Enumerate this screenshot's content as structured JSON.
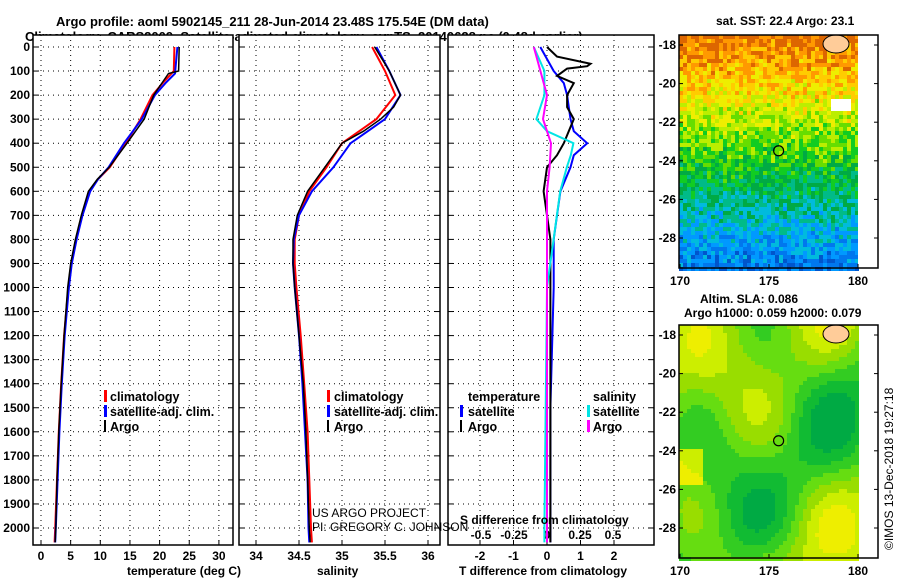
{
  "title_line1": "Argo profile: aoml 5902145_211 28-Jun-2014 23.48S 175.54E (DM data)",
  "title_line2": "Climatology: CARS2009. Satellite-adjusted climatology: synTS_20140628.nc (0.48d earlier)",
  "credit_line1": "US ARGO PROJECT",
  "credit_line2": "PI: GREGORY C. JOHNSON",
  "copyright": "©IMOS 13-Dec-2018 19:27:18",
  "colors": {
    "climatology": "#ff0000",
    "satellite": "#0000ff",
    "argo": "#000000",
    "sal_satellite": "#00e5e5",
    "sal_argo": "#ff00ff",
    "land": "#ffcc99"
  },
  "legend_profile": [
    "climatology",
    "satellite-adj. clim.",
    "Argo"
  ],
  "legend_diff": {
    "temp_title": "temperature",
    "sal_title": "salinity",
    "satellite": "satellite",
    "argo": "Argo"
  },
  "chart_data": [
    {
      "type": "line",
      "xlabel": "temperature (deg C)",
      "ylabel": "depth",
      "xlim": [
        -1.3,
        32
      ],
      "ylim": [
        2070,
        -50
      ],
      "xticks": [
        0,
        5,
        10,
        15,
        20,
        25,
        30
      ],
      "yticks": [
        0,
        100,
        200,
        300,
        400,
        500,
        600,
        700,
        800,
        900,
        1000,
        1100,
        1200,
        1300,
        1400,
        1500,
        1600,
        1700,
        1800,
        1900,
        2000
      ],
      "series": [
        {
          "name": "climatology",
          "depth": [
            0,
            100,
            150,
            200,
            300,
            400,
            500,
            550,
            600,
            700,
            800,
            900,
            1000,
            1200,
            1400,
            1600,
            1800,
            2000,
            2060
          ],
          "values": [
            22.5,
            22.4,
            20.5,
            18.8,
            16.8,
            14.3,
            11.6,
            9.6,
            8.2,
            6.9,
            5.9,
            5.1,
            4.6,
            3.9,
            3.4,
            3.0,
            2.7,
            2.4,
            2.3
          ]
        },
        {
          "name": "satellite-adj. clim.",
          "depth": [
            0,
            110,
            150,
            200,
            300,
            400,
            500,
            550,
            600,
            700,
            800,
            900,
            1000,
            1200,
            1400,
            1600,
            1800,
            2000,
            2060
          ],
          "values": [
            23.0,
            22.6,
            21.0,
            19.2,
            17.0,
            14.0,
            11.4,
            9.6,
            8.3,
            7.0,
            6.0,
            5.2,
            4.7,
            4.0,
            3.5,
            3.1,
            2.8,
            2.5,
            2.4
          ]
        },
        {
          "name": "Argo",
          "depth": [
            0,
            100,
            110,
            200,
            300,
            400,
            500,
            550,
            600,
            700,
            800,
            900,
            1000,
            1200,
            1400,
            1600,
            1800,
            2000,
            2060
          ],
          "values": [
            23.3,
            23.2,
            21.5,
            19.0,
            17.4,
            14.5,
            11.5,
            9.5,
            8.0,
            6.8,
            5.8,
            5.0,
            4.5,
            3.9,
            3.4,
            3.0,
            2.7,
            2.5,
            2.4
          ]
        }
      ]
    },
    {
      "type": "line",
      "xlabel": "salinity",
      "ylabel": "depth",
      "xlim": [
        33.79,
        36.13
      ],
      "ylim": [
        2070,
        -50
      ],
      "xticks": [
        34,
        34.5,
        35,
        35.5,
        36
      ],
      "series": [
        {
          "name": "climatology",
          "depth": [
            0,
            100,
            200,
            300,
            350,
            400,
            500,
            600,
            700,
            800,
            900,
            1000,
            1200,
            1400,
            1600,
            1800,
            2000,
            2060
          ],
          "values": [
            35.35,
            35.5,
            35.62,
            35.4,
            35.2,
            35.0,
            34.82,
            34.62,
            34.5,
            34.45,
            34.45,
            34.47,
            34.52,
            34.56,
            34.6,
            34.62,
            34.64,
            34.65
          ]
        },
        {
          "name": "satellite-adj. clim.",
          "depth": [
            0,
            100,
            200,
            300,
            350,
            400,
            500,
            600,
            700,
            800,
            900,
            1000,
            1200,
            1400,
            1600,
            1800,
            2000,
            2060
          ],
          "values": [
            35.4,
            35.55,
            35.68,
            35.5,
            35.3,
            35.1,
            34.9,
            34.65,
            34.5,
            34.44,
            34.43,
            34.45,
            34.5,
            34.54,
            34.57,
            34.6,
            34.61,
            34.62
          ]
        },
        {
          "name": "Argo",
          "depth": [
            0,
            100,
            200,
            250,
            300,
            350,
            400,
            500,
            600,
            700,
            800,
            900,
            1000,
            1200,
            1400,
            1600,
            1800,
            2000,
            2060
          ],
          "values": [
            35.38,
            35.55,
            35.68,
            35.6,
            35.45,
            35.25,
            35.0,
            34.8,
            34.6,
            34.48,
            34.43,
            34.43,
            34.45,
            34.5,
            34.55,
            34.58,
            34.6,
            34.62,
            34.63
          ]
        }
      ]
    },
    {
      "type": "line",
      "xlabel": "T difference from climatology",
      "x2label": "S difference from climatology",
      "xlim": [
        -2.9,
        3.2
      ],
      "xticks": [
        -2,
        -1,
        0,
        1,
        2
      ],
      "x2ticks": [
        -0.5,
        -0.25,
        0,
        0.25,
        0.5
      ],
      "series": [
        {
          "name": "temperature satellite",
          "axis": "T",
          "depth": [
            0,
            50,
            100,
            150,
            200,
            300,
            350,
            400,
            450,
            500,
            600,
            700,
            800,
            1000,
            1500,
            2000,
            2060
          ],
          "values": [
            -0.2,
            0.0,
            0.2,
            0.5,
            0.6,
            0.7,
            0.8,
            1.2,
            0.8,
            0.7,
            0.4,
            0.3,
            0.2,
            0.2,
            0.1,
            0.1,
            0.1
          ]
        },
        {
          "name": "temperature Argo",
          "axis": "T",
          "depth": [
            0,
            40,
            70,
            80,
            90,
            120,
            150,
            200,
            250,
            300,
            400,
            450,
            500,
            600,
            700,
            800,
            1000,
            1500,
            2000,
            2060
          ],
          "values": [
            0.0,
            0.3,
            1.3,
            1.2,
            0.6,
            0.3,
            0.8,
            0.6,
            0.6,
            0.8,
            0.5,
            0.3,
            0.0,
            -0.1,
            0.0,
            0.1,
            0.1,
            0.1,
            0.1,
            0.1
          ]
        },
        {
          "name": "salinity satellite",
          "axis": "S",
          "depth": [
            0,
            100,
            200,
            300,
            350,
            400,
            450,
            500,
            600,
            800,
            1000,
            1500,
            2000,
            2060
          ],
          "values": [
            -0.1,
            -0.02,
            -0.02,
            -0.08,
            0.0,
            0.2,
            0.18,
            0.15,
            0.1,
            0.05,
            0.0,
            -0.01,
            -0.02,
            -0.02
          ]
        },
        {
          "name": "salinity Argo",
          "axis": "S",
          "depth": [
            0,
            100,
            200,
            300,
            400,
            500,
            600,
            800,
            1000,
            1500,
            2000,
            2060
          ],
          "values": [
            -0.1,
            -0.05,
            0.0,
            -0.03,
            0.03,
            0.02,
            0.0,
            0.0,
            0.0,
            0.0,
            0.0,
            0.0
          ]
        }
      ]
    },
    {
      "type": "heatmap",
      "title": "sat. SST: 22.4 Argo: 23.1",
      "xlim": [
        170,
        181
      ],
      "ylim": [
        -29.6,
        -17.4
      ],
      "xticks": [
        170,
        175,
        180
      ],
      "yticks": [
        -18,
        -20,
        -22,
        -24,
        -26,
        -28
      ],
      "marker": {
        "lon": 175.54,
        "lat": -23.48
      }
    },
    {
      "type": "heatmap",
      "title": "Altim. SLA: 0.086",
      "subtitle": "Argo h1000: 0.059 h2000: 0.079",
      "xlim": [
        170,
        181
      ],
      "ylim": [
        -29.6,
        -17.4
      ],
      "xticks": [
        170,
        175,
        180
      ],
      "yticks": [
        -18,
        -20,
        -22,
        -24,
        -26,
        -28
      ],
      "marker": {
        "lon": 175.54,
        "lat": -23.48
      }
    }
  ]
}
